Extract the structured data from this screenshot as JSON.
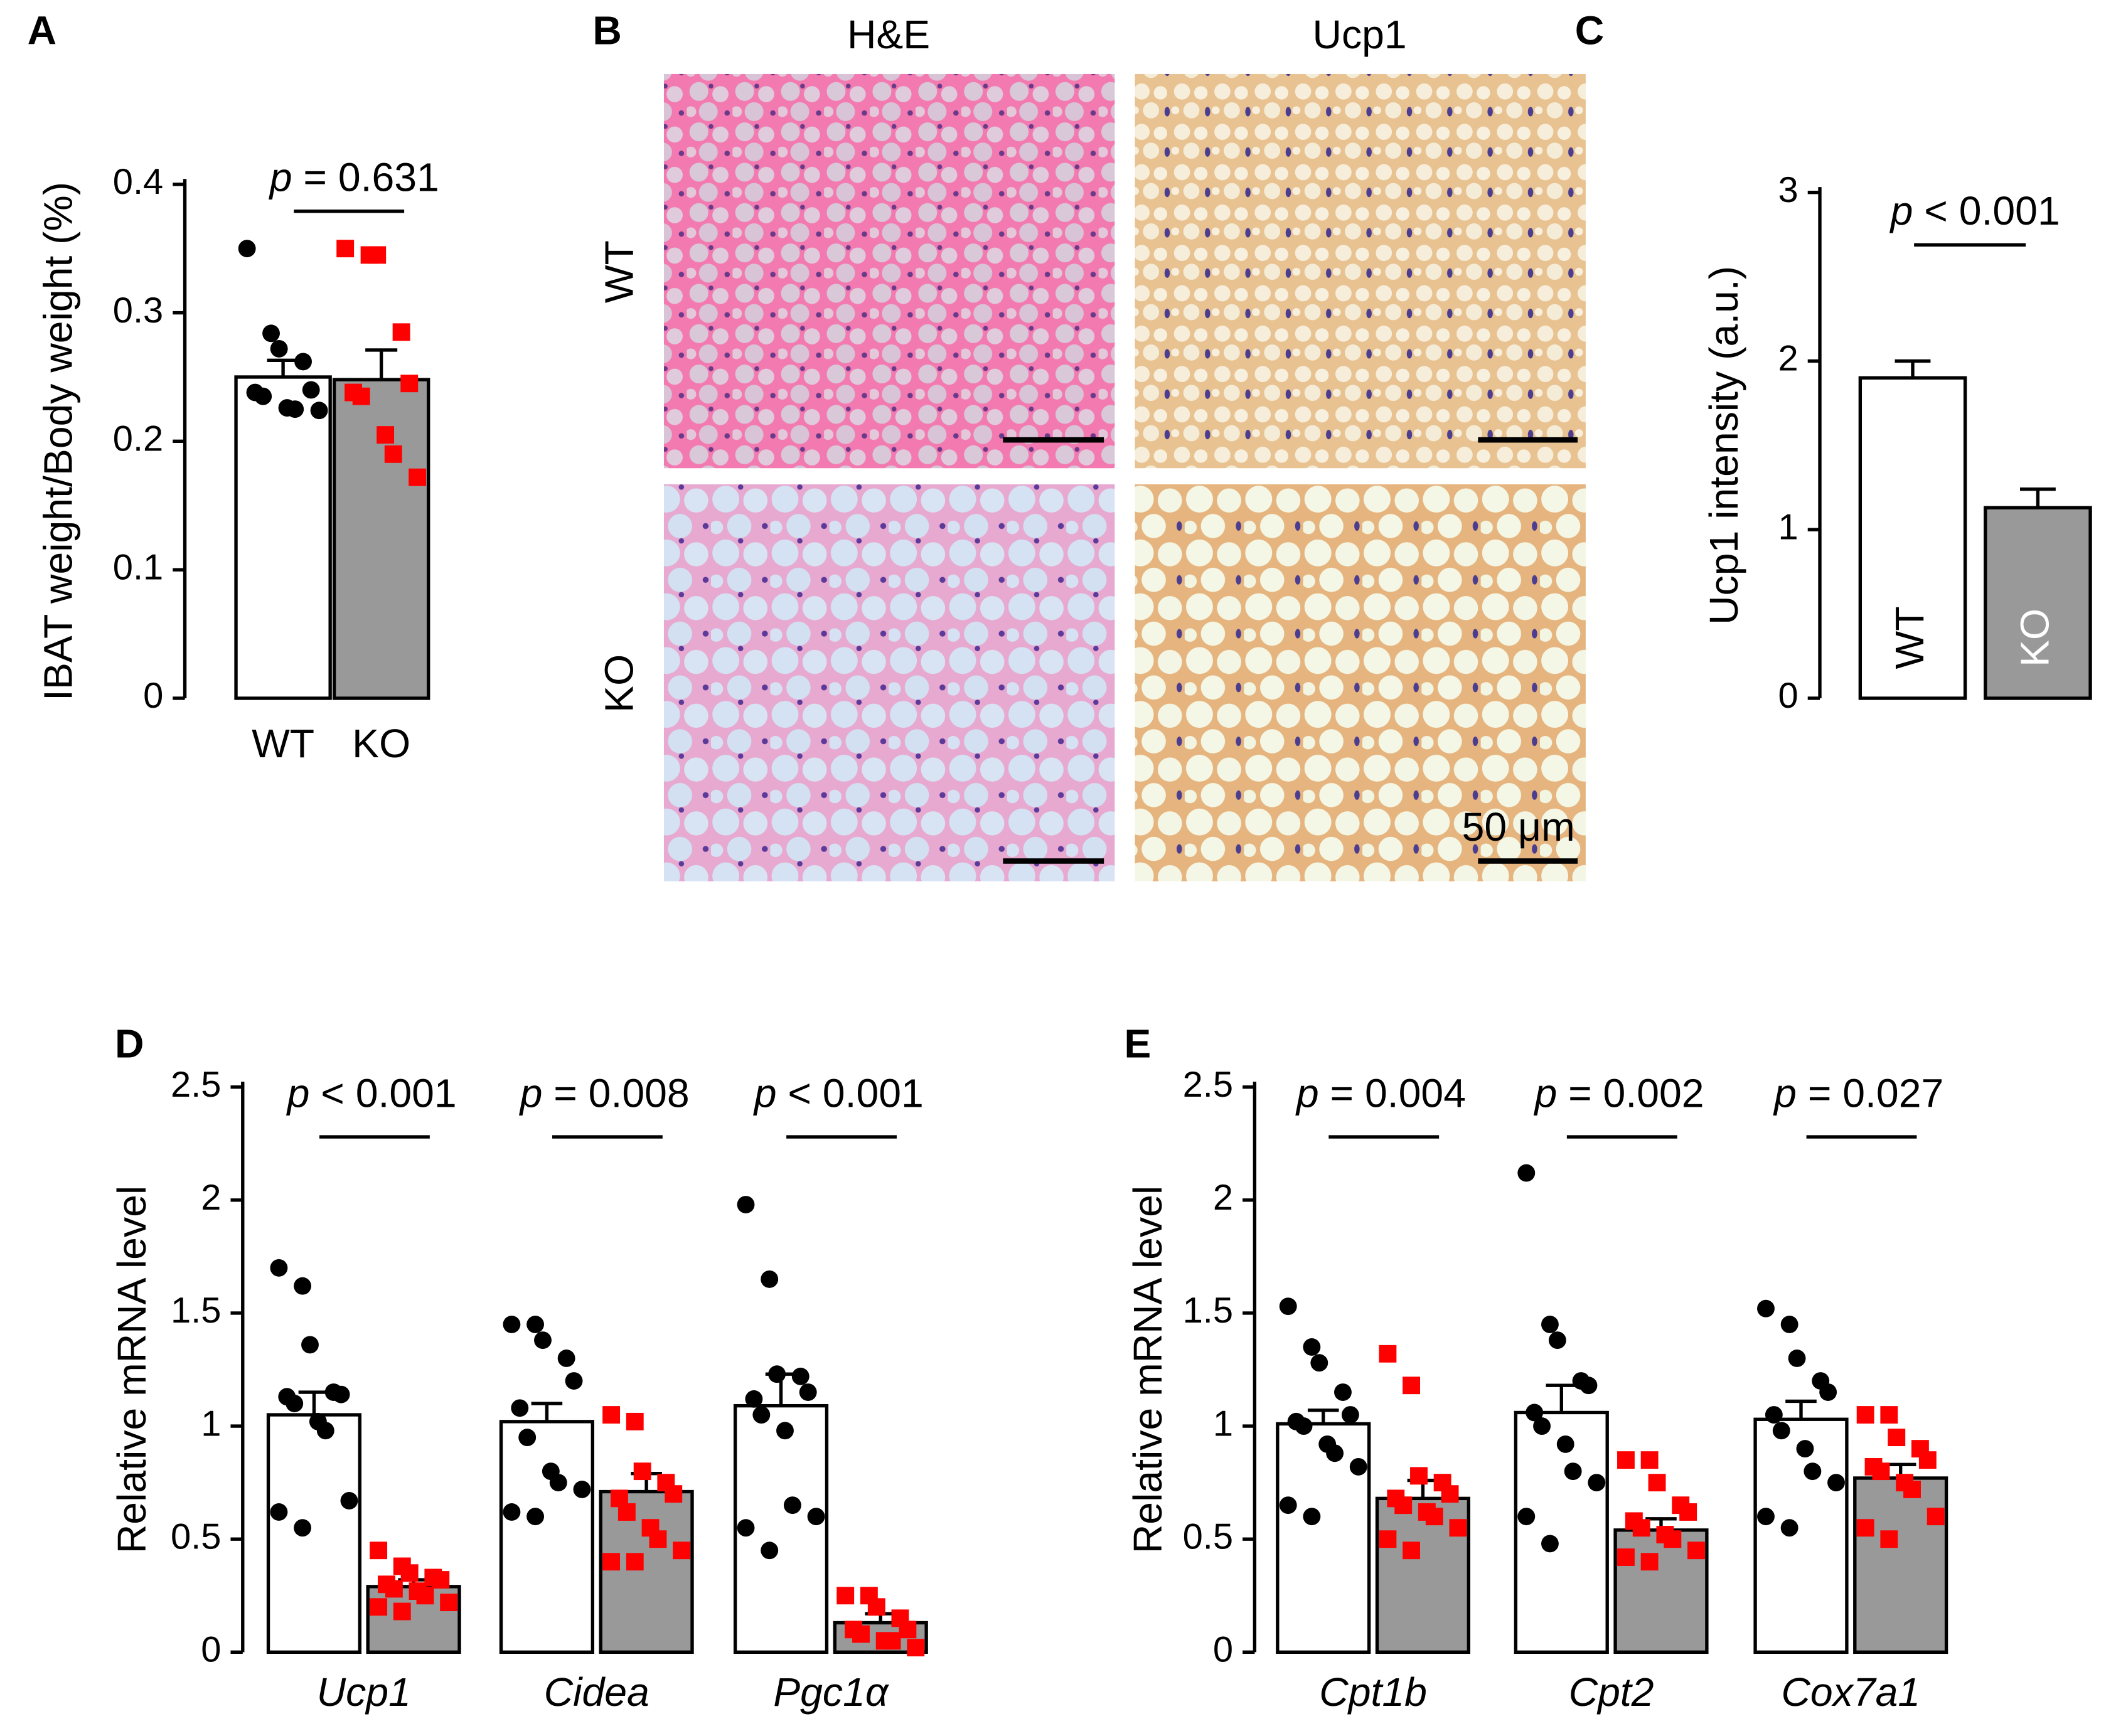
{
  "chart_data": [
    {
      "panel": "A",
      "type": "bar",
      "categories": [
        "WT",
        "KO"
      ],
      "values": [
        0.25,
        0.248
      ],
      "errors": [
        0.013,
        0.023
      ],
      "colors": [
        "#ffffff",
        "#999999"
      ],
      "point_colors": [
        "#000000",
        "#ff0000"
      ],
      "point_shapes": [
        "circle",
        "square"
      ],
      "points": [
        [
          0.35,
          0.284,
          0.272,
          0.262,
          0.24,
          0.238,
          0.235,
          0.226,
          0.225,
          0.224
        ],
        [
          0.35,
          0.345,
          0.345,
          0.285,
          0.245,
          0.238,
          0.235,
          0.205,
          0.19,
          0.172
        ]
      ],
      "ylabel": "IBAT weight/Body weight (%)",
      "ylim": [
        0,
        0.4
      ],
      "yticks": [
        0,
        0.1,
        0.2,
        0.3,
        0.4
      ],
      "annotations": [
        "p = 0.631"
      ]
    },
    {
      "panel": "C",
      "type": "bar",
      "categories": [
        "WT",
        "KO"
      ],
      "values": [
        1.9,
        1.13
      ],
      "errors": [
        0.1,
        0.11
      ],
      "colors": [
        "#ffffff",
        "#999999"
      ],
      "label_colors": [
        "#000000",
        "#ffffff"
      ],
      "ylabel": "Ucp1 intensity (a.u.)",
      "ylim": [
        0,
        3
      ],
      "yticks": [
        0,
        1,
        2,
        3
      ],
      "annotations": [
        "p < 0.001"
      ]
    },
    {
      "panel": "D",
      "type": "bar",
      "categories": [
        "Ucp1",
        "Cidea",
        "Pgc1α"
      ],
      "series": [
        {
          "color": "#ffffff",
          "point_color": "#000000",
          "point_shape": "circle",
          "values": [
            1.05,
            1.02,
            1.09
          ],
          "errors": [
            0.1,
            0.08,
            0.14
          ],
          "points": [
            [
              1.7,
              1.62,
              1.36,
              1.15,
              1.14,
              1.13,
              1.1,
              1.02,
              0.98,
              0.67,
              0.62,
              0.55
            ],
            [
              1.45,
              1.45,
              1.38,
              1.3,
              1.2,
              1.08,
              0.95,
              0.8,
              0.75,
              0.72,
              0.62,
              0.6
            ],
            [
              1.98,
              1.65,
              1.23,
              1.22,
              1.15,
              1.12,
              1.05,
              0.98,
              0.65,
              0.6,
              0.55,
              0.45
            ]
          ]
        },
        {
          "color": "#999999",
          "point_color": "#ff0000",
          "point_shape": "square",
          "values": [
            0.29,
            0.71,
            0.13
          ],
          "errors": [
            0.03,
            0.08,
            0.04
          ],
          "points": [
            [
              0.45,
              0.38,
              0.35,
              0.33,
              0.32,
              0.3,
              0.28,
              0.27,
              0.25,
              0.22,
              0.2,
              0.18
            ],
            [
              1.05,
              1.02,
              0.8,
              0.75,
              0.7,
              0.68,
              0.62,
              0.55,
              0.5,
              0.45,
              0.4,
              0.4
            ],
            [
              0.25,
              0.25,
              0.2,
              0.15,
              0.1,
              0.1,
              0.08,
              0.05,
              0.05,
              0.02
            ]
          ]
        }
      ],
      "ylabel": "Relative mRNA level",
      "ylim": [
        0,
        2.5
      ],
      "yticks": [
        0,
        0.5,
        1,
        1.5,
        2,
        2.5
      ],
      "annotations": [
        "p < 0.001",
        "p = 0.008",
        "p < 0.001"
      ]
    },
    {
      "panel": "E",
      "type": "bar",
      "categories": [
        "Cpt1b",
        "Cpt2",
        "Cox7a1"
      ],
      "series": [
        {
          "color": "#ffffff",
          "point_color": "#000000",
          "point_shape": "circle",
          "values": [
            1.01,
            1.06,
            1.03
          ],
          "errors": [
            0.06,
            0.12,
            0.08
          ],
          "points": [
            [
              1.53,
              1.35,
              1.28,
              1.15,
              1.05,
              1.02,
              1.0,
              0.92,
              0.88,
              0.82,
              0.65,
              0.6
            ],
            [
              2.12,
              1.45,
              1.38,
              1.2,
              1.18,
              1.06,
              1.0,
              0.92,
              0.8,
              0.75,
              0.6,
              0.48
            ],
            [
              1.52,
              1.45,
              1.3,
              1.2,
              1.15,
              1.05,
              0.98,
              0.9,
              0.8,
              0.75,
              0.6,
              0.55
            ]
          ]
        },
        {
          "color": "#999999",
          "point_color": "#ff0000",
          "point_shape": "square",
          "values": [
            0.68,
            0.54,
            0.77
          ],
          "errors": [
            0.08,
            0.05,
            0.06
          ],
          "points": [
            [
              1.32,
              1.18,
              0.78,
              0.75,
              0.7,
              0.68,
              0.65,
              0.62,
              0.6,
              0.55,
              0.5,
              0.45
            ],
            [
              0.85,
              0.85,
              0.75,
              0.65,
              0.62,
              0.58,
              0.55,
              0.52,
              0.5,
              0.45,
              0.42,
              0.4
            ],
            [
              1.05,
              1.05,
              0.95,
              0.9,
              0.85,
              0.82,
              0.8,
              0.75,
              0.72,
              0.6,
              0.55,
              0.5
            ]
          ]
        }
      ],
      "ylabel": "Relative mRNA level",
      "ylim": [
        0,
        2.5
      ],
      "yticks": [
        0,
        0.5,
        1,
        1.5,
        2,
        2.5
      ],
      "annotations": [
        "p = 0.004",
        "p = 0.002",
        "p = 0.027"
      ]
    }
  ],
  "panel_b": {
    "panel": "B",
    "columns": [
      "H&E",
      "Ucp1"
    ],
    "rows": [
      "WT",
      "KO"
    ],
    "scale_bar": "50 μm"
  }
}
